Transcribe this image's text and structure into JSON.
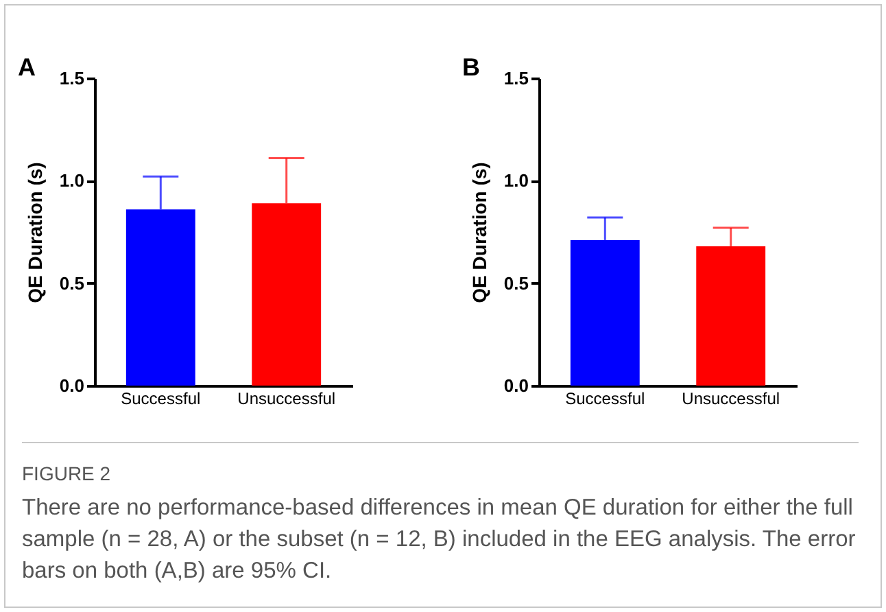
{
  "chart_data": [
    {
      "type": "bar",
      "title": "A",
      "ylabel": "QE Duration (s)",
      "categories": [
        "Successful",
        "Unsuccessful"
      ],
      "values": [
        0.86,
        0.89
      ],
      "colors": [
        "#0000ff",
        "#ff0000"
      ],
      "errors": [
        [
          0.86,
          1.02
        ],
        [
          0.89,
          1.11
        ]
      ],
      "ylim": [
        0,
        1.5
      ],
      "yticks": [
        {
          "value": 0,
          "label": "0.0"
        },
        {
          "value": 0.5,
          "label": "0.5"
        },
        {
          "value": 1,
          "label": "1.0"
        },
        {
          "value": 1.5,
          "label": "1.5"
        }
      ],
      "annotations": [
        "FIGURE 2",
        "There are no performance-based differences in mean QE duration for either the full sample (n = 28, A) or the subset (n = 12, B) included in the EEG analysis. The error bars on both (A,B) are 95% CI."
      ]
    },
    {
      "type": "bar",
      "title": "B",
      "ylabel": "QE Duration (s)",
      "categories": [
        "Successful",
        "Unsuccessful"
      ],
      "values": [
        0.71,
        0.68
      ],
      "colors": [
        "#0000ff",
        "#ff0000"
      ],
      "errors": [
        [
          0.71,
          0.82
        ],
        [
          0.68,
          0.77
        ]
      ],
      "ylim": [
        0,
        1.5
      ],
      "yticks": [
        {
          "value": 0,
          "label": "0.0"
        },
        {
          "value": 0.5,
          "label": "0.5"
        },
        {
          "value": 1,
          "label": "1.0"
        },
        {
          "value": 1.5,
          "label": "1.5"
        }
      ]
    }
  ]
}
